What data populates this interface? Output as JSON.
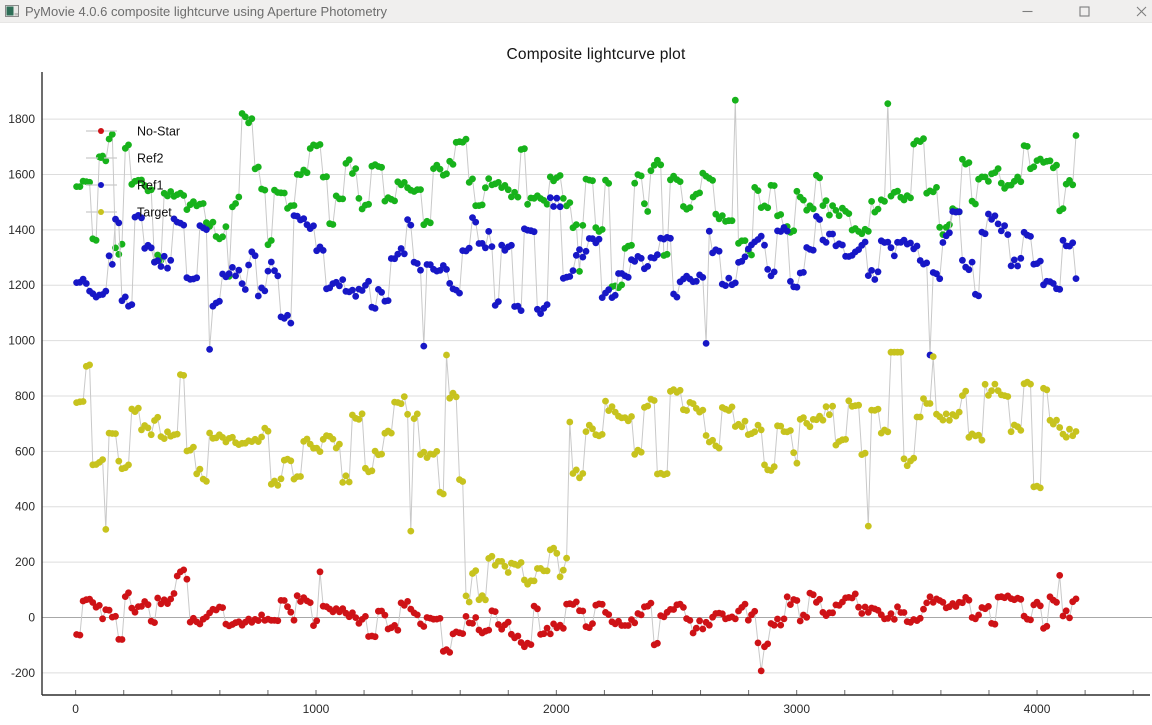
{
  "window": {
    "title": "PyMovie 4.0.6 composite lightcurve using Aperture Photometry",
    "controls": [
      "minimize",
      "maximize",
      "close"
    ],
    "titlebar_bg": "#f0efee",
    "titlebar_text_color": "#6d6d6d"
  },
  "chart_data": {
    "type": "scatter",
    "title": "Composite lightcurve plot",
    "background": "#ffffff",
    "grid": {
      "horizontal": true,
      "vertical": false,
      "line_color": "#dddddd",
      "zero_line_color": "#a8a8a8"
    },
    "style": {
      "connector_color": "#c9c9c9",
      "marker_radius": 3.4,
      "axis_color": "#2f2f2f",
      "tick_color": "#6b6b6b",
      "tick_label_color": "#2a2a2a"
    },
    "x_axis": {
      "range": [
        -140,
        4470
      ],
      "tick_start": 0,
      "tick_end": 4400,
      "tick_step": 200,
      "labeled_ticks": [
        0,
        1000,
        2000,
        3000,
        4000
      ]
    },
    "y_axis": {
      "range": [
        -280,
        1970
      ],
      "labeled_ticks": [
        -200,
        0,
        200,
        400,
        600,
        800,
        1000,
        1200,
        1400,
        1600,
        1800
      ]
    },
    "legend": {
      "position": "top-left",
      "entries": [
        {
          "label": "No-Star",
          "color": "#ce1216"
        },
        {
          "label": "Ref2",
          "color": "#17b21b"
        },
        {
          "label": "Ref1",
          "color": "#1717c6"
        },
        {
          "label": "Target",
          "color": "#c7c31e"
        }
      ]
    },
    "sampling": {
      "x_start": 4,
      "x_end": 4168,
      "x_step": 13.5,
      "cluster_min": 2,
      "cluster_max": 4
    },
    "series": [
      {
        "name": "No-Star",
        "color": "#ce1216",
        "seed": 101,
        "base": 8,
        "cluster_sigma": 47,
        "jitter": 10,
        "wander_amp": 20,
        "wander_period": 560,
        "wander_phase": 1.2,
        "range": [
          -168,
          172
        ],
        "spikes": [
          {
            "x": 1020,
            "y": 165
          },
          {
            "x": 2850,
            "y": -193
          },
          {
            "x": 4098,
            "y": 152
          }
        ]
      },
      {
        "name": "Ref2",
        "color": "#17b21b",
        "seed": 202,
        "base": 1498,
        "cluster_sigma": 108,
        "jitter": 11,
        "wander_amp": 32,
        "wander_period": 640,
        "wander_phase": 0.4,
        "range": [
          1175,
          1885
        ],
        "spikes": [
          {
            "x": 2748,
            "y": 1868
          },
          {
            "x": 3382,
            "y": 1856
          },
          {
            "x": 640,
            "y": 1232
          },
          {
            "x": 2090,
            "y": 1250
          }
        ]
      },
      {
        "name": "Ref1",
        "color": "#1717c6",
        "seed": 303,
        "base": 1297,
        "cluster_sigma": 100,
        "jitter": 11,
        "wander_amp": 28,
        "wander_period": 590,
        "wander_phase": 2.1,
        "range": [
          955,
          1622
        ],
        "spikes": [
          {
            "x": 552,
            "y": 968
          },
          {
            "x": 1455,
            "y": 980
          },
          {
            "x": 3548,
            "y": 948
          },
          {
            "x": 2620,
            "y": 990
          }
        ]
      },
      {
        "name": "Target",
        "color": "#c7c31e",
        "seed": 404,
        "base": 650,
        "cluster_sigma": 106,
        "jitter": 10,
        "wander_amp": 30,
        "wander_period": 610,
        "wander_phase": 3.3,
        "range": [
          332,
          958
        ],
        "event": {
          "x_start": 1622,
          "x_end": 2052,
          "base": 192,
          "sigma": 82,
          "jitter": 10,
          "range": [
            56,
            402
          ]
        },
        "spikes": [
          {
            "x": 123,
            "y": 318
          },
          {
            "x": 1398,
            "y": 312
          },
          {
            "x": 3294,
            "y": 330
          },
          {
            "x": 1540,
            "y": 948
          },
          {
            "x": 3570,
            "y": 942
          }
        ]
      }
    ]
  }
}
